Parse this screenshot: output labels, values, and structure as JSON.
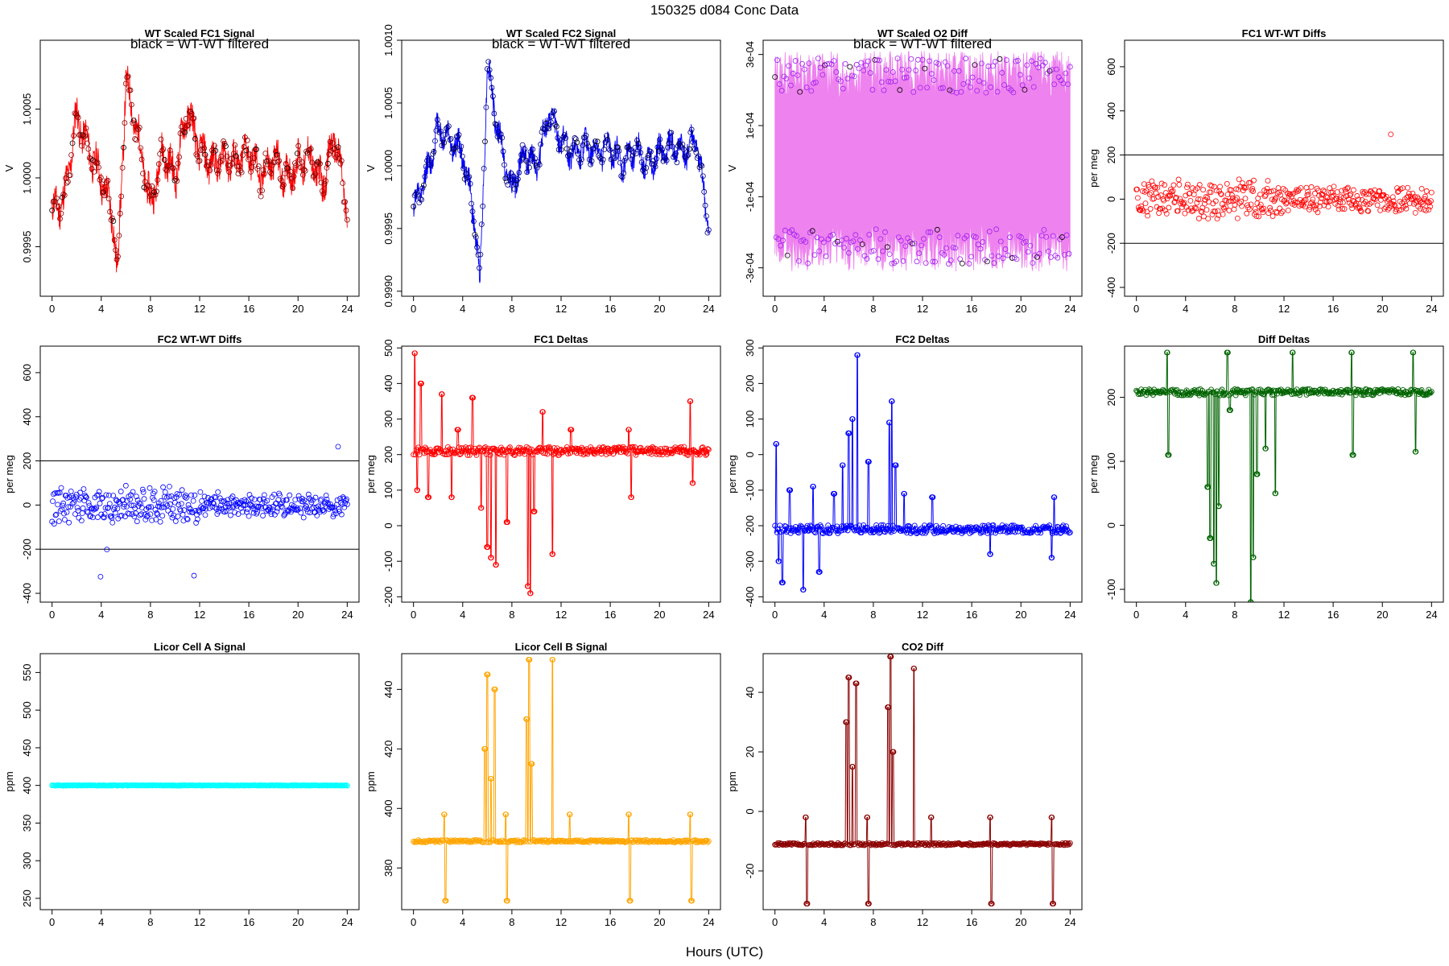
{
  "figure": {
    "title": "150325   d084   Conc Data",
    "xlabel": "Hours (UTC)"
  },
  "colors": {
    "red": "#ff0000",
    "blue": "#0000ff",
    "violet": "#ee82ee",
    "purple": "#a020f0",
    "green": "#006400",
    "cyan": "#00ffff",
    "orange": "#ffa500",
    "darkred": "#8b0000"
  },
  "chart_data": [
    {
      "id": "fc1-signal",
      "type": "line",
      "title": "WT Scaled FC1 Signal",
      "annotation": "black = WT-WT filtered",
      "ylabel": "V",
      "xlim": [
        -0.96,
        24.96
      ],
      "ylim": [
        0.99914,
        1.001
      ],
      "xticks": [
        0,
        4,
        8,
        12,
        16,
        20,
        24
      ],
      "yticks": [
        {
          "v": 0.9995,
          "label": "0.9995"
        },
        {
          "v": 1.0,
          "label": "1.0000"
        },
        {
          "v": 1.0005,
          "label": "1.0005"
        }
      ],
      "line_color": "#ff0000",
      "marker_color": "#8b0000",
      "style": "signal",
      "x": [
        0,
        1,
        2,
        3,
        4,
        5,
        5.3,
        6,
        7,
        8,
        9,
        10,
        11,
        12,
        13,
        14,
        15,
        16,
        17,
        18,
        19,
        20,
        21,
        22,
        23,
        24
      ],
      "y": [
        0.99975,
        0.99985,
        1.00045,
        1.0002,
        1.0,
        0.9997,
        0.99925,
        1.0007,
        1.0003,
        0.9998,
        1.0002,
        1.0,
        1.0005,
        1.0002,
        1.0001,
        1.00015,
        1.0001,
        1.0002,
        1.0,
        1.00015,
        1.0,
        1.0001,
        1.00015,
        0.99995,
        1.0003,
        0.99975
      ],
      "band": 0.00012
    },
    {
      "id": "fc2-signal",
      "type": "line",
      "title": "WT Scaled FC2 Signal",
      "annotation": "black = WT-WT filtered",
      "ylabel": "V",
      "xlim": [
        -0.96,
        24.96
      ],
      "ylim": [
        0.99896,
        1.001
      ],
      "xticks": [
        0,
        4,
        8,
        12,
        16,
        20,
        24
      ],
      "yticks": [
        {
          "v": 0.999,
          "label": "0.9990"
        },
        {
          "v": 0.9995,
          "label": "0.9995"
        },
        {
          "v": 1.0,
          "label": "1.0000"
        },
        {
          "v": 1.0005,
          "label": "1.0005"
        },
        {
          "v": 1.001,
          "label": "1.0010"
        }
      ],
      "line_color": "#0000ff",
      "marker_color": "#000080",
      "style": "signal",
      "x": [
        0,
        1,
        2,
        3,
        4,
        5,
        5.4,
        6,
        7,
        8,
        9,
        10,
        11,
        12,
        13,
        14,
        15,
        16,
        17,
        18,
        19,
        20,
        21,
        22,
        23,
        24
      ],
      "y": [
        0.99965,
        0.9999,
        1.0003,
        1.0002,
        1.0001,
        0.99955,
        0.99905,
        1.0008,
        1.0002,
        0.9998,
        1.0001,
        1.0,
        1.0004,
        1.0002,
        1.0001,
        1.00015,
        1.0001,
        1.00015,
        1.0,
        1.00015,
        1.0,
        1.0001,
        1.00015,
        1.0001,
        1.0002,
        0.9995
      ],
      "band": 0.0001
    },
    {
      "id": "o2-diff",
      "type": "scatter",
      "title": "WT Scaled O2 Diff",
      "annotation": "black = WT-WT filtered",
      "ylabel": "V",
      "xlim": [
        -0.96,
        24.96
      ],
      "ylim": [
        -0.00038,
        0.00034
      ],
      "xticks": [
        0,
        4,
        8,
        12,
        16,
        20,
        24
      ],
      "yticks": [
        {
          "v": -0.0003,
          "label": "-3e-04"
        },
        {
          "v": -0.0001,
          "label": "-1e-04"
        },
        {
          "v": 0.0001,
          "label": "1e-04"
        },
        {
          "v": 0.0003,
          "label": "3e-04"
        }
      ],
      "line_color": "#ee82ee",
      "marker_color": "#a020f0",
      "style": "twoband",
      "upper_level": 0.00024,
      "lower_level": -0.00024,
      "band": 7e-05
    },
    {
      "id": "fc1-wtwt",
      "type": "scatter",
      "title": "FC1 WT-WT Diffs",
      "ylabel": "per meg",
      "xlim": [
        -0.96,
        24.96
      ],
      "ylim": [
        -440,
        720
      ],
      "xticks": [
        0,
        4,
        8,
        12,
        16,
        20,
        24
      ],
      "yticks": [
        {
          "v": -400,
          "label": "-400"
        },
        {
          "v": -200,
          "label": "-200"
        },
        {
          "v": 0,
          "label": "0"
        },
        {
          "v": 200,
          "label": "200"
        },
        {
          "v": 400,
          "label": "400"
        },
        {
          "v": 600,
          "label": "600"
        }
      ],
      "hlines": [
        200,
        -200
      ],
      "marker_color": "#ff0000",
      "style": "scatter",
      "spread": 75,
      "seed": 3
    },
    {
      "id": "fc2-wtwt",
      "type": "scatter",
      "title": "FC2 WT-WT Diffs",
      "ylabel": "per meg",
      "xlim": [
        -0.96,
        24.96
      ],
      "ylim": [
        -440,
        720
      ],
      "xticks": [
        0,
        4,
        8,
        12,
        16,
        20,
        24
      ],
      "yticks": [
        {
          "v": -400,
          "label": "-400"
        },
        {
          "v": -200,
          "label": "-200"
        },
        {
          "v": 0,
          "label": "0"
        },
        {
          "v": 200,
          "label": "200"
        },
        {
          "v": 400,
          "label": "400"
        },
        {
          "v": 600,
          "label": "600"
        }
      ],
      "hlines": [
        200,
        -200
      ],
      "marker_color": "#0000ff",
      "style": "scatter",
      "spread": 70,
      "seed": 7
    },
    {
      "id": "fc1-deltas",
      "type": "line",
      "title": "FC1 Deltas",
      "ylabel": "per meg",
      "xlim": [
        -0.96,
        24.96
      ],
      "ylim": [
        -215,
        505
      ],
      "xticks": [
        0,
        4,
        8,
        12,
        16,
        20,
        24
      ],
      "yticks": [
        {
          "v": -200,
          "label": "-200"
        },
        {
          "v": -100,
          "label": "-100"
        },
        {
          "v": 0,
          "label": "0"
        },
        {
          "v": 100,
          "label": "100"
        },
        {
          "v": 200,
          "label": "200"
        },
        {
          "v": 300,
          "label": "300"
        },
        {
          "v": 400,
          "label": "400"
        },
        {
          "v": 500,
          "label": "500"
        }
      ],
      "marker_color": "#ff0000",
      "style": "deltas",
      "base": 210,
      "noise": 12,
      "spikes": [
        [
          0.1,
          485
        ],
        [
          0.3,
          100
        ],
        [
          0.6,
          400
        ],
        [
          1.2,
          80
        ],
        [
          2.3,
          370
        ],
        [
          3.1,
          80
        ],
        [
          3.6,
          270
        ],
        [
          4.8,
          360
        ],
        [
          5.5,
          50
        ],
        [
          6.0,
          -60
        ],
        [
          6.3,
          -90
        ],
        [
          6.7,
          -110
        ],
        [
          7.6,
          10
        ],
        [
          9.3,
          -170
        ],
        [
          9.5,
          -190
        ],
        [
          9.8,
          40
        ],
        [
          10.5,
          320
        ],
        [
          11.3,
          -80
        ],
        [
          12.8,
          270
        ],
        [
          17.5,
          270
        ],
        [
          17.7,
          80
        ],
        [
          22.5,
          350
        ],
        [
          22.7,
          120
        ]
      ]
    },
    {
      "id": "fc2-deltas",
      "type": "line",
      "title": "FC2 Deltas",
      "ylabel": "per meg",
      "xlim": [
        -0.96,
        24.96
      ],
      "ylim": [
        -415,
        305
      ],
      "xticks": [
        0,
        4,
        8,
        12,
        16,
        20,
        24
      ],
      "yticks": [
        {
          "v": -400,
          "label": "-400"
        },
        {
          "v": -300,
          "label": "-300"
        },
        {
          "v": -200,
          "label": "-200"
        },
        {
          "v": -100,
          "label": "-100"
        },
        {
          "v": 0,
          "label": "0"
        },
        {
          "v": 100,
          "label": "100"
        },
        {
          "v": 200,
          "label": "200"
        },
        {
          "v": 300,
          "label": "300"
        }
      ],
      "marker_color": "#0000ff",
      "style": "deltas",
      "base": -210,
      "noise": 12,
      "spikes": [
        [
          0.1,
          30
        ],
        [
          0.3,
          -300
        ],
        [
          0.6,
          -360
        ],
        [
          1.2,
          -100
        ],
        [
          2.3,
          -380
        ],
        [
          3.1,
          -90
        ],
        [
          3.6,
          -330
        ],
        [
          4.8,
          -110
        ],
        [
          5.5,
          -30
        ],
        [
          6.0,
          60
        ],
        [
          6.3,
          100
        ],
        [
          6.7,
          280
        ],
        [
          7.6,
          -20
        ],
        [
          9.3,
          90
        ],
        [
          9.5,
          150
        ],
        [
          9.8,
          -30
        ],
        [
          10.5,
          -110
        ],
        [
          12.8,
          -120
        ],
        [
          17.5,
          -280
        ],
        [
          22.5,
          -290
        ],
        [
          22.7,
          -120
        ]
      ]
    },
    {
      "id": "diff-deltas",
      "type": "line",
      "title": "Diff Deltas",
      "ylabel": "per meg",
      "xlim": [
        -0.96,
        24.96
      ],
      "ylim": [
        -120,
        280
      ],
      "xticks": [
        0,
        4,
        8,
        12,
        16,
        20,
        24
      ],
      "yticks": [
        {
          "v": -100,
          "label": "-100"
        },
        {
          "v": 0,
          "label": "0"
        },
        {
          "v": 100,
          "label": "100"
        },
        {
          "v": 200,
          "label": "200"
        }
      ],
      "marker_color": "#006400",
      "style": "deltas",
      "base": 208,
      "noise": 5,
      "spikes": [
        [
          2.5,
          270
        ],
        [
          2.6,
          110
        ],
        [
          5.8,
          60
        ],
        [
          6.0,
          -20
        ],
        [
          6.3,
          -60
        ],
        [
          6.5,
          -90
        ],
        [
          6.7,
          30
        ],
        [
          7.4,
          270
        ],
        [
          7.6,
          180
        ],
        [
          9.3,
          -120
        ],
        [
          9.5,
          -50
        ],
        [
          9.8,
          80
        ],
        [
          10.5,
          120
        ],
        [
          11.3,
          50
        ],
        [
          12.7,
          270
        ],
        [
          17.5,
          270
        ],
        [
          17.6,
          110
        ],
        [
          22.5,
          270
        ],
        [
          22.7,
          115
        ]
      ]
    },
    {
      "id": "licor-a",
      "type": "line",
      "title": "Licor Cell A Signal",
      "ylabel": "ppm",
      "xlim": [
        -0.96,
        24.96
      ],
      "ylim": [
        235,
        575
      ],
      "xticks": [
        0,
        4,
        8,
        12,
        16,
        20,
        24
      ],
      "yticks": [
        {
          "v": 250,
          "label": "250"
        },
        {
          "v": 300,
          "label": "300"
        },
        {
          "v": 350,
          "label": "350"
        },
        {
          "v": 400,
          "label": "400"
        },
        {
          "v": 450,
          "label": "450"
        },
        {
          "v": 500,
          "label": "500"
        },
        {
          "v": 550,
          "label": "550"
        }
      ],
      "marker_color": "#00ffff",
      "style": "flat",
      "base": 400,
      "noise": 0.4
    },
    {
      "id": "licor-b",
      "type": "line",
      "title": "Licor Cell B Signal",
      "ylabel": "ppm",
      "xlim": [
        -0.96,
        24.96
      ],
      "ylim": [
        366,
        452
      ],
      "xticks": [
        0,
        4,
        8,
        12,
        16,
        20,
        24
      ],
      "yticks": [
        {
          "v": 380,
          "label": "380"
        },
        {
          "v": 400,
          "label": "400"
        },
        {
          "v": 420,
          "label": "420"
        },
        {
          "v": 440,
          "label": "440"
        }
      ],
      "marker_color": "#ffa500",
      "style": "deltas",
      "base": 389,
      "noise": 0.4,
      "spikes": [
        [
          2.5,
          398
        ],
        [
          2.6,
          369
        ],
        [
          5.8,
          420
        ],
        [
          6.0,
          445
        ],
        [
          6.3,
          410
        ],
        [
          6.6,
          440
        ],
        [
          7.5,
          398
        ],
        [
          7.6,
          369
        ],
        [
          9.2,
          430
        ],
        [
          9.4,
          450
        ],
        [
          9.6,
          415
        ],
        [
          11.3,
          450
        ],
        [
          12.7,
          398
        ],
        [
          17.5,
          398
        ],
        [
          17.6,
          369
        ],
        [
          22.5,
          398
        ],
        [
          22.6,
          369
        ]
      ]
    },
    {
      "id": "co2-diff",
      "type": "line",
      "title": "CO2 Diff",
      "ylabel": "ppm",
      "xlim": [
        -0.96,
        24.96
      ],
      "ylim": [
        -33,
        53
      ],
      "xticks": [
        0,
        4,
        8,
        12,
        16,
        20,
        24
      ],
      "yticks": [
        {
          "v": -20,
          "label": "-20"
        },
        {
          "v": 0,
          "label": "0"
        },
        {
          "v": 20,
          "label": "20"
        },
        {
          "v": 40,
          "label": "40"
        }
      ],
      "marker_color": "#8b0000",
      "style": "deltas",
      "base": -11,
      "noise": 0.4,
      "spikes": [
        [
          2.5,
          -2
        ],
        [
          2.6,
          -31
        ],
        [
          5.8,
          30
        ],
        [
          6.0,
          45
        ],
        [
          6.3,
          15
        ],
        [
          6.6,
          43
        ],
        [
          7.5,
          -2
        ],
        [
          7.6,
          -31
        ],
        [
          9.2,
          35
        ],
        [
          9.4,
          52
        ],
        [
          9.6,
          20
        ],
        [
          11.3,
          48
        ],
        [
          12.7,
          -2
        ],
        [
          17.5,
          -2
        ],
        [
          17.6,
          -31
        ],
        [
          22.5,
          -2
        ],
        [
          22.6,
          -31
        ]
      ]
    }
  ]
}
